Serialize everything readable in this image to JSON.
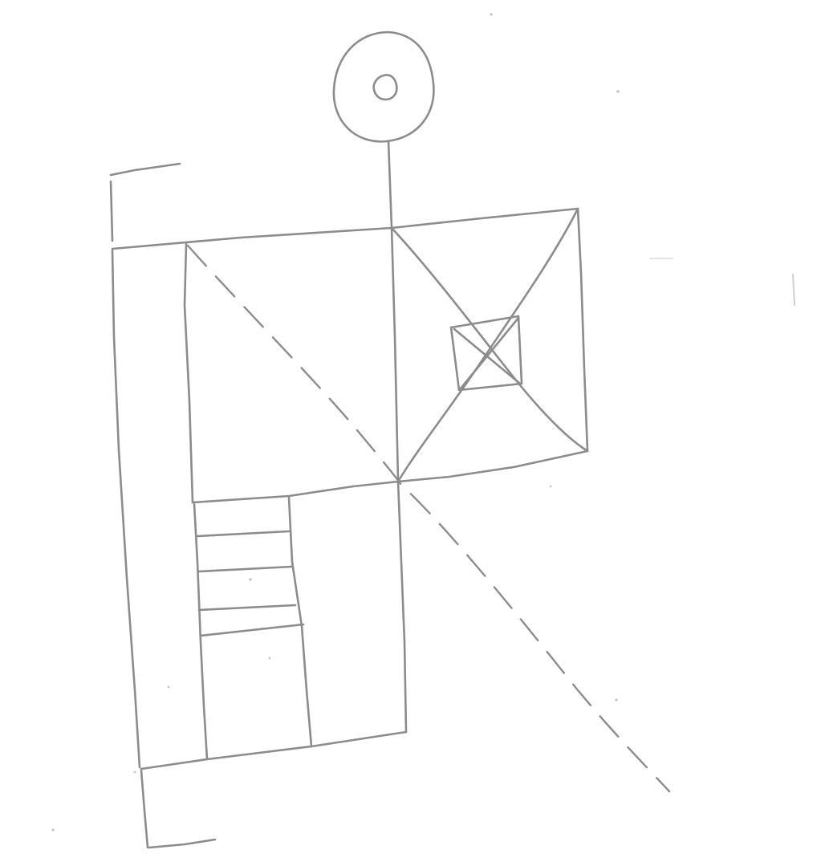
{
  "sketch": {
    "background": "#ffffff",
    "stroke_color": "#8c8c8c",
    "speck_color": "#c4c4c4",
    "medium": "pencil",
    "elements": [
      "outer-bracket",
      "top-node-circle",
      "vertical-spine",
      "upper-panel",
      "right-panel",
      "crossed-window",
      "dashed-diagonal",
      "lower-left-column",
      "stacked-slats",
      "lower-right-column"
    ]
  }
}
